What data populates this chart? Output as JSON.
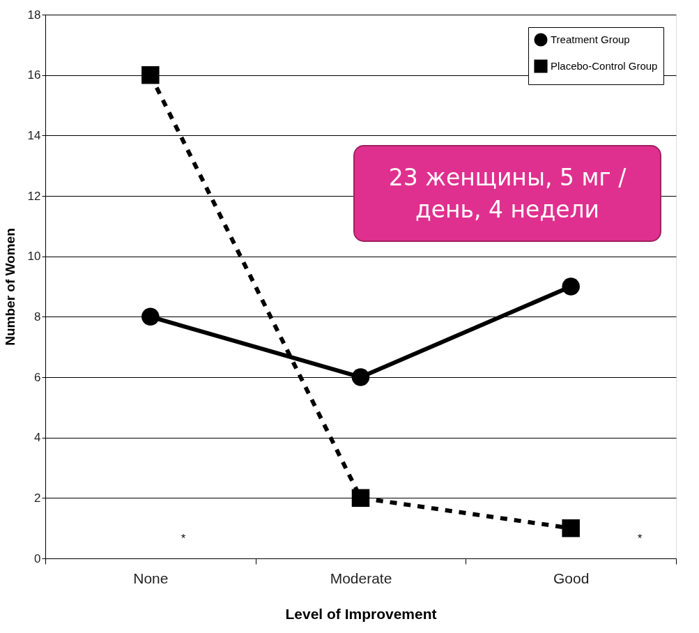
{
  "chart_data": {
    "type": "line",
    "xlabel": "Level of Improvement",
    "ylabel": "Number of Women",
    "categories": [
      "None",
      "Moderate",
      "Good"
    ],
    "series": [
      {
        "name": "Treatment Group",
        "color": "#000000",
        "values": [
          8,
          6,
          9
        ],
        "marker": "circle",
        "line_style": "solid"
      },
      {
        "name": "Placebo-Control Group",
        "color": "#000000",
        "values": [
          16,
          2,
          1
        ],
        "marker": "square",
        "line_style": "dashed"
      }
    ],
    "ylim": [
      0,
      18
    ],
    "yticks": [
      0,
      2,
      4,
      6,
      8,
      10,
      12,
      14,
      16,
      18
    ],
    "grid": "y",
    "legend": "top right",
    "annotations": [
      "*",
      "*",
      "23 женщины, 5 мг /\nдень, 4 недели"
    ]
  }
}
